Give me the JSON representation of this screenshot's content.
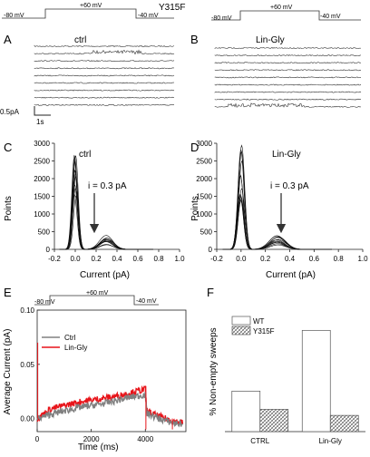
{
  "figure_title": "Y315F",
  "protocol": {
    "v1": "-80 mV",
    "v2": "+60 mV",
    "v3": "-40 mV"
  },
  "panels": {
    "A": {
      "letter": "A",
      "title": "ctrl",
      "scale_current": "0.5pA",
      "scale_time": "1s"
    },
    "B": {
      "letter": "B",
      "title": "Lin-Gly"
    },
    "C": {
      "letter": "C",
      "title": "ctrl",
      "annotation": "i = 0.3 pA",
      "xlabel": "Current (pA)",
      "ylabel": "Points"
    },
    "D": {
      "letter": "D",
      "title": "Lin-Gly",
      "annotation": "i = 0.3 pA",
      "xlabel": "Current (pA)",
      "ylabel": "Points"
    },
    "E": {
      "letter": "E",
      "xlabel": "Time (ms)",
      "ylabel": "Average Current (pA)"
    },
    "F": {
      "letter": "F",
      "ylabel": "% Non-empty sweeps"
    }
  },
  "colors": {
    "ctrl": "#808080",
    "lin_gly": "#e8141a",
    "wt": "#ffffff",
    "y315f": "#c8c8c8"
  },
  "chart_data": [
    {
      "id": "C",
      "type": "line",
      "title": "ctrl",
      "xlabel": "Current (pA)",
      "ylabel": "Points",
      "xlim": [
        -0.2,
        1.0
      ],
      "ylim": [
        0,
        3000
      ],
      "x_ticks": [
        "-0.2",
        "0.0",
        "0.2",
        "0.4",
        "0.6",
        "0.8",
        "1.0"
      ],
      "y_ticks": [
        "0",
        "500",
        "1000",
        "1500",
        "2000",
        "2500",
        "3000"
      ],
      "description_peaks": {
        "closed_level": 0.0,
        "closed_max": 2900,
        "open_level": 0.3,
        "open_max": 400
      },
      "annotation": "i = 0.3 pA"
    },
    {
      "id": "D",
      "type": "line",
      "title": "Lin-Gly",
      "xlabel": "Current (pA)",
      "ylabel": "Points",
      "xlim": [
        -0.2,
        1.0
      ],
      "ylim": [
        0,
        3000
      ],
      "x_ticks": [
        "-0.2",
        "0.0",
        "0.2",
        "0.4",
        "0.6",
        "0.8",
        "1.0"
      ],
      "y_ticks": [
        "0",
        "500",
        "1000",
        "1500",
        "2000",
        "2500",
        "3000"
      ],
      "description_peaks": {
        "closed_level": 0.0,
        "closed_max": 2950,
        "open_level": 0.3,
        "open_max": 420
      },
      "annotation": "i = 0.3 pA"
    },
    {
      "id": "E",
      "type": "line",
      "xlabel": "Time (ms)",
      "ylabel": "Average Current (pA)",
      "xlim": [
        0,
        5500
      ],
      "ylim": [
        -0.012,
        0.1
      ],
      "x_ticks": [
        "0",
        "2000",
        "4000"
      ],
      "y_ticks": [
        "0.00",
        "0.05",
        "0.10"
      ],
      "legend": "top-left",
      "series": [
        {
          "name": "Ctrl",
          "x": [
            0,
            500,
            1000,
            1500,
            2000,
            2500,
            3000,
            3500,
            4000,
            4050,
            4500,
            5000,
            5400
          ],
          "values": [
            0.0,
            0.004,
            0.007,
            0.01,
            0.012,
            0.014,
            0.017,
            0.02,
            0.022,
            0.005,
            0.0,
            -0.004,
            -0.005
          ]
        },
        {
          "name": "Lin-Gly",
          "x": [
            0,
            500,
            1000,
            1500,
            2000,
            2500,
            3000,
            3500,
            4000,
            4050,
            4500,
            5000,
            5400
          ],
          "values": [
            0.0,
            0.009,
            0.012,
            0.015,
            0.017,
            0.019,
            0.021,
            0.024,
            0.027,
            0.007,
            0.002,
            -0.002,
            -0.004
          ]
        }
      ]
    },
    {
      "id": "F",
      "type": "bar",
      "ylabel": "% Non-empty sweeps",
      "categories": [
        "CTRL",
        "Lin-Gly"
      ],
      "ylim": [
        0,
        60
      ],
      "series": [
        {
          "name": "WT",
          "values": [
            20,
            50
          ]
        },
        {
          "name": "Y315F",
          "values": [
            11,
            8
          ]
        }
      ]
    }
  ]
}
